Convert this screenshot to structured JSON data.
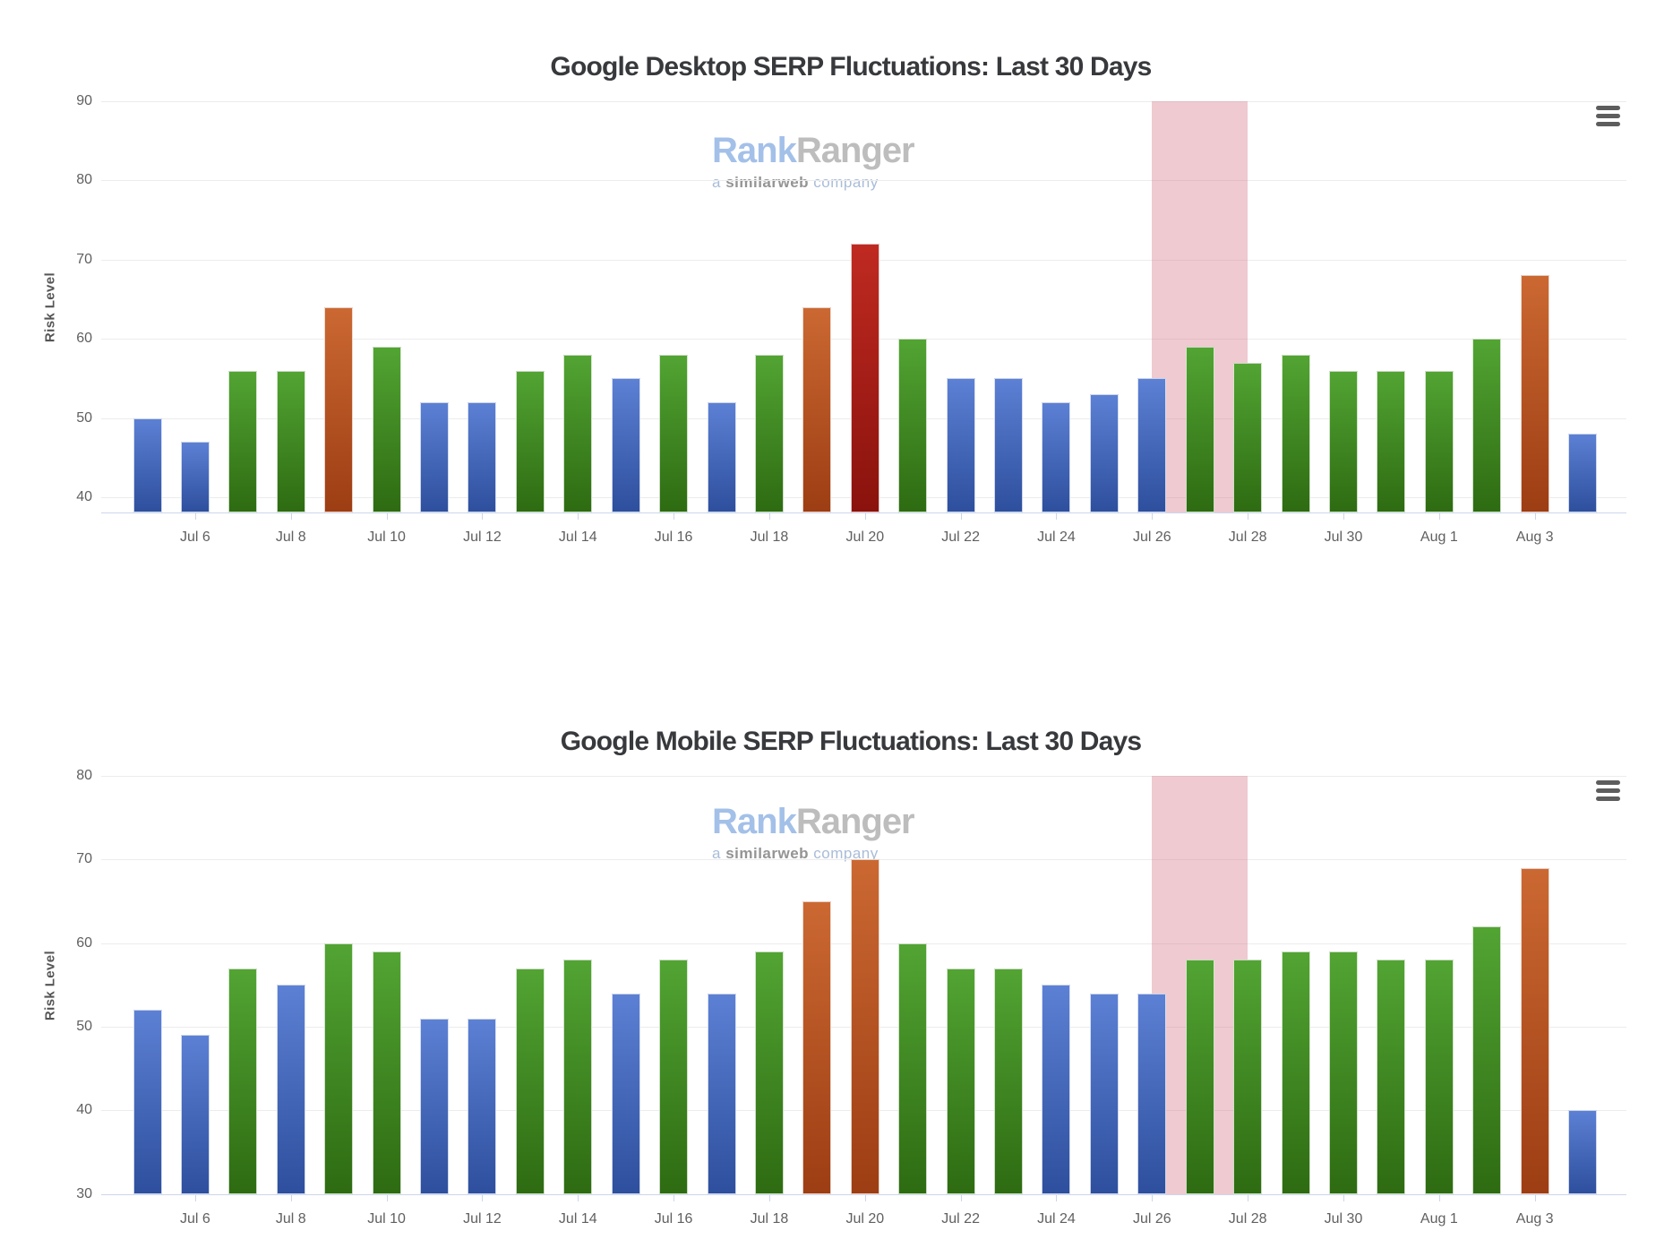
{
  "page": {
    "background": "#ffffff"
  },
  "watermark": {
    "part1": "Rank",
    "part2": "Ranger",
    "tagline_prefix": "a ",
    "tagline_brand": "similarweb",
    "tagline_suffix": " company"
  },
  "icons": {
    "menu": "hamburger-menu-icon"
  },
  "colors": {
    "bar_palette": {
      "blue": {
        "top": "#5c80d4",
        "bottom": "#2e4f9d"
      },
      "green": {
        "top": "#52a433",
        "bottom": "#2e6b12"
      },
      "orange": {
        "top": "#cb6832",
        "bottom": "#9d3d13"
      },
      "red": {
        "top": "#bf2a21",
        "bottom": "#8a120d"
      }
    },
    "highlight_band": "rgba(213,116,132,0.38)",
    "grid_line": "#ececec",
    "axis_line": "#ccd6eb",
    "title_text": "#37393c",
    "axis_text": "#606060"
  },
  "chart_data": [
    {
      "type": "bar",
      "title": "Google Desktop SERP Fluctuations: Last 30 Days",
      "xlabel": "",
      "ylabel": "Risk Level",
      "ylim": [
        38.1,
        90
      ],
      "yticks": [
        40,
        50,
        60,
        70,
        80,
        90
      ],
      "grid": "horizontal",
      "legend": false,
      "categories": [
        "Jul 5",
        "Jul 6",
        "Jul 7",
        "Jul 8",
        "Jul 9",
        "Jul 10",
        "Jul 11",
        "Jul 12",
        "Jul 13",
        "Jul 14",
        "Jul 15",
        "Jul 16",
        "Jul 17",
        "Jul 18",
        "Jul 19",
        "Jul 20",
        "Jul 21",
        "Jul 22",
        "Jul 23",
        "Jul 24",
        "Jul 25",
        "Jul 26",
        "Jul 27",
        "Jul 28",
        "Jul 29",
        "Jul 30",
        "Jul 31",
        "Aug 1",
        "Aug 2",
        "Aug 3",
        "Aug 4"
      ],
      "values": [
        50,
        47,
        56,
        56,
        64,
        59,
        52,
        52,
        56,
        58,
        55,
        58,
        52,
        58,
        64,
        72,
        60,
        55,
        55,
        52,
        53,
        55,
        59,
        57,
        58,
        56,
        56,
        56,
        60,
        68,
        48
      ],
      "point_colors": [
        "blue",
        "blue",
        "green",
        "green",
        "orange",
        "green",
        "blue",
        "blue",
        "green",
        "green",
        "blue",
        "green",
        "blue",
        "green",
        "orange",
        "red",
        "green",
        "blue",
        "blue",
        "blue",
        "blue",
        "blue",
        "green",
        "green",
        "green",
        "green",
        "green",
        "green",
        "green",
        "orange",
        "blue"
      ],
      "x_tick_labels_every": 2,
      "highlight_band": {
        "x_from": "Jul 26",
        "x_to": "Jul 28"
      }
    },
    {
      "type": "bar",
      "title": "Google Mobile SERP Fluctuations: Last 30 Days",
      "xlabel": "",
      "ylabel": "Risk Level",
      "ylim": [
        30,
        80
      ],
      "yticks": [
        30,
        40,
        50,
        60,
        70,
        80
      ],
      "grid": "horizontal",
      "legend": false,
      "categories": [
        "Jul 5",
        "Jul 6",
        "Jul 7",
        "Jul 8",
        "Jul 9",
        "Jul 10",
        "Jul 11",
        "Jul 12",
        "Jul 13",
        "Jul 14",
        "Jul 15",
        "Jul 16",
        "Jul 17",
        "Jul 18",
        "Jul 19",
        "Jul 20",
        "Jul 21",
        "Jul 22",
        "Jul 23",
        "Jul 24",
        "Jul 25",
        "Jul 26",
        "Jul 27",
        "Jul 28",
        "Jul 29",
        "Jul 30",
        "Jul 31",
        "Aug 1",
        "Aug 2",
        "Aug 3",
        "Aug 4"
      ],
      "values": [
        52,
        49,
        57,
        55,
        60,
        59,
        51,
        51,
        57,
        58,
        54,
        58,
        54,
        59,
        65,
        70,
        60,
        57,
        57,
        55,
        54,
        54,
        58,
        58,
        59,
        59,
        58,
        58,
        62,
        69,
        40
      ],
      "point_colors": [
        "blue",
        "blue",
        "green",
        "blue",
        "green",
        "green",
        "blue",
        "blue",
        "green",
        "green",
        "blue",
        "green",
        "blue",
        "green",
        "orange",
        "orange",
        "green",
        "green",
        "green",
        "blue",
        "blue",
        "blue",
        "green",
        "green",
        "green",
        "green",
        "green",
        "green",
        "green",
        "orange",
        "blue"
      ],
      "x_tick_labels_every": 2,
      "highlight_band": {
        "x_from": "Jul 26",
        "x_to": "Jul 28"
      }
    }
  ]
}
